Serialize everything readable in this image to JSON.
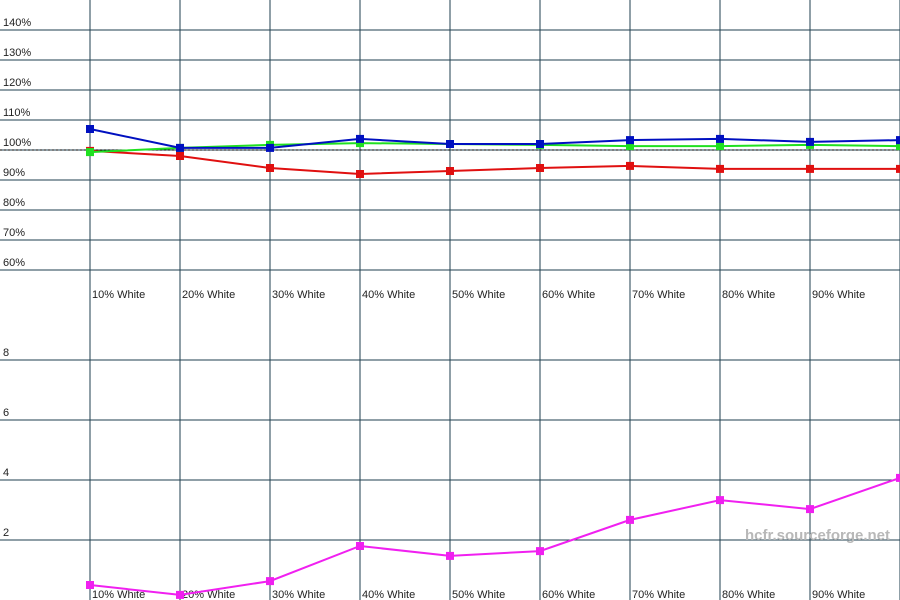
{
  "chart_data": [
    {
      "type": "line",
      "categories": [
        "10% White",
        "20% White",
        "30% White",
        "40% White",
        "50% White",
        "60% White",
        "70% White",
        "80% White",
        "90% White",
        null
      ],
      "ylim": [
        60,
        150
      ],
      "yticks": [
        {
          "value": 60,
          "label": "60%"
        },
        {
          "value": 70,
          "label": "70%"
        },
        {
          "value": 80,
          "label": "80%"
        },
        {
          "value": 90,
          "label": "90%"
        },
        {
          "value": 100,
          "label": "100%"
        },
        {
          "value": 110,
          "label": "110%"
        },
        {
          "value": 120,
          "label": "120%"
        },
        {
          "value": 130,
          "label": "130%"
        },
        {
          "value": 140,
          "label": "140%"
        }
      ],
      "reference_line": 100,
      "grid": true,
      "series": [
        {
          "color": "#e01010",
          "values": [
            99.7,
            98,
            94,
            92,
            93,
            94,
            94.7,
            93.7,
            93.7,
            93.7
          ]
        },
        {
          "color": "#20e020",
          "values": [
            99.3,
            100.7,
            101.7,
            102.3,
            102,
            101.7,
            101.3,
            101.3,
            101.7,
            101.3
          ]
        },
        {
          "color": "#0010c0",
          "values": [
            107,
            100.7,
            100.7,
            103.7,
            102,
            102,
            103.3,
            103.7,
            102.7,
            103.3
          ]
        }
      ]
    },
    {
      "type": "line",
      "categories": [
        "10% White",
        "20% White",
        "30% White",
        "40% White",
        "50% White",
        "60% White",
        "70% White",
        "80% White",
        "90% White",
        null
      ],
      "ylim": [
        0,
        10
      ],
      "yticks": [
        2,
        4,
        6,
        8
      ],
      "grid": true,
      "watermark": "hcfr.sourceforge.net",
      "series": [
        {
          "color": "#f020f0",
          "values": [
            0.5,
            0.17,
            0.63,
            1.8,
            1.47,
            1.63,
            2.67,
            3.33,
            3.03,
            4.07
          ]
        }
      ]
    }
  ]
}
